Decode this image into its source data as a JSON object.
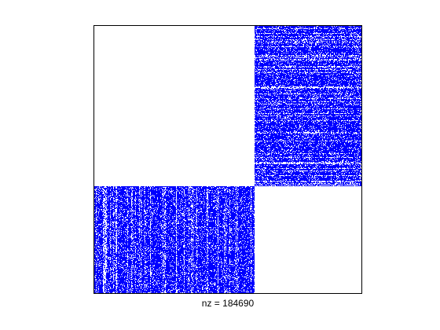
{
  "chart_data": {
    "type": "heatmap",
    "subtype": "sparsity-pattern",
    "title": "",
    "xlabel": "nz = 184690",
    "ylabel": "",
    "grid": false,
    "legend": "none",
    "axis_ticks": "hidden",
    "nonzero_count": 184690,
    "block_structure": {
      "rows": 2,
      "cols": 2,
      "split_fraction": 0.6,
      "blocks": [
        {
          "name": "top-left",
          "row": 0,
          "col": 0,
          "filled": false
        },
        {
          "name": "top-right",
          "row": 0,
          "col": 1,
          "filled": true
        },
        {
          "name": "bottom-left",
          "row": 1,
          "col": 0,
          "filled": true
        },
        {
          "name": "bottom-right",
          "row": 1,
          "col": 1,
          "filled": false
        }
      ]
    },
    "marker_color": "#0000ff",
    "background_color": "#ffffff",
    "frame_color": "#000000"
  }
}
